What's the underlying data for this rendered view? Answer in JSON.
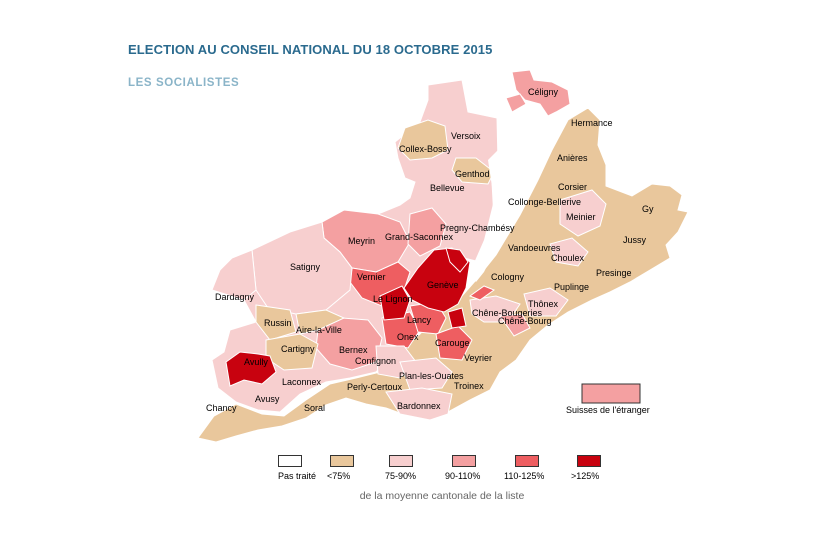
{
  "header": {
    "title": "ELECTION AU CONSEIL NATIONAL DU 18 OCTOBRE 2015",
    "subtitle": "LES SOCIALISTES"
  },
  "colors": {
    "not_processed": "#ffffff",
    "lt75": "#e9c79c",
    "75_90": "#f7cfcf",
    "90_110": "#f4a0a1",
    "110_125": "#ee5e61",
    "gt125": "#c8020f",
    "lake": "#ffffff"
  },
  "legend": {
    "items": [
      {
        "label": "Pas traité",
        "color_key": "not_processed"
      },
      {
        "label": "<75%",
        "color_key": "lt75"
      },
      {
        "label": "75-90%",
        "color_key": "75_90"
      },
      {
        "label": "90-110%",
        "color_key": "90_110"
      },
      {
        "label": "110-125%",
        "color_key": "110_125"
      },
      {
        "label": ">125%",
        "color_key": "gt125"
      }
    ],
    "note": "de la moyenne cantonale de la liste"
  },
  "abroad": {
    "label": "Suisses de l'étranger",
    "category": "90_110"
  },
  "communes": [
    {
      "name": "Céligny",
      "category": "90_110"
    },
    {
      "name": "Hermance",
      "category": "lt75"
    },
    {
      "name": "Versoix",
      "category": "75_90"
    },
    {
      "name": "Collex-Bossy",
      "category": "lt75"
    },
    {
      "name": "Genthod",
      "category": "lt75"
    },
    {
      "name": "Bellevue",
      "category": "75_90"
    },
    {
      "name": "Anières",
      "category": "lt75"
    },
    {
      "name": "Corsier",
      "category": "lt75"
    },
    {
      "name": "Collonge-Bellerive",
      "category": "lt75"
    },
    {
      "name": "Meinier",
      "category": "75_90"
    },
    {
      "name": "Gy",
      "category": "lt75"
    },
    {
      "name": "Jussy",
      "category": "lt75"
    },
    {
      "name": "Pregny-Chambésy",
      "category": "75_90"
    },
    {
      "name": "Grand-Saconnex",
      "category": "90_110"
    },
    {
      "name": "Meyrin",
      "category": "90_110"
    },
    {
      "name": "Vandoeuvres",
      "category": "lt75"
    },
    {
      "name": "Choulex",
      "category": "lt75"
    },
    {
      "name": "Presinge",
      "category": "lt75"
    },
    {
      "name": "Satigny",
      "category": "75_90"
    },
    {
      "name": "Vernier",
      "category": "110_125"
    },
    {
      "name": "Cologny",
      "category": "lt75"
    },
    {
      "name": "Genève",
      "category": "gt125"
    },
    {
      "name": "Puplinge",
      "category": "lt75"
    },
    {
      "name": "Dardagny",
      "category": "75_90"
    },
    {
      "name": "Le Lignon",
      "category": "gt125"
    },
    {
      "name": "Thônex",
      "category": "75_90"
    },
    {
      "name": "Chêne-Bougeries",
      "category": "75_90"
    },
    {
      "name": "Chêne-Bourg",
      "category": "90_110"
    },
    {
      "name": "Russin",
      "category": "lt75"
    },
    {
      "name": "Aire-la-Ville",
      "category": "lt75"
    },
    {
      "name": "Lancy",
      "category": "110_125"
    },
    {
      "name": "Onex",
      "category": "110_125"
    },
    {
      "name": "Cartigny",
      "category": "lt75"
    },
    {
      "name": "Bernex",
      "category": "90_110"
    },
    {
      "name": "Carouge",
      "category": "110_125"
    },
    {
      "name": "Confignon",
      "category": "75_90"
    },
    {
      "name": "Veyrier",
      "category": "lt75"
    },
    {
      "name": "Avully",
      "category": "gt125"
    },
    {
      "name": "Plan-les-Ouates",
      "category": "75_90"
    },
    {
      "name": "Laconnex",
      "category": "lt75"
    },
    {
      "name": "Perly-Certoux",
      "category": "lt75"
    },
    {
      "name": "Troinex",
      "category": "lt75"
    },
    {
      "name": "Avusy",
      "category": "lt75"
    },
    {
      "name": "Chancy",
      "category": "lt75"
    },
    {
      "name": "Soral",
      "category": "lt75"
    },
    {
      "name": "Bardonnex",
      "category": "75_90"
    }
  ]
}
